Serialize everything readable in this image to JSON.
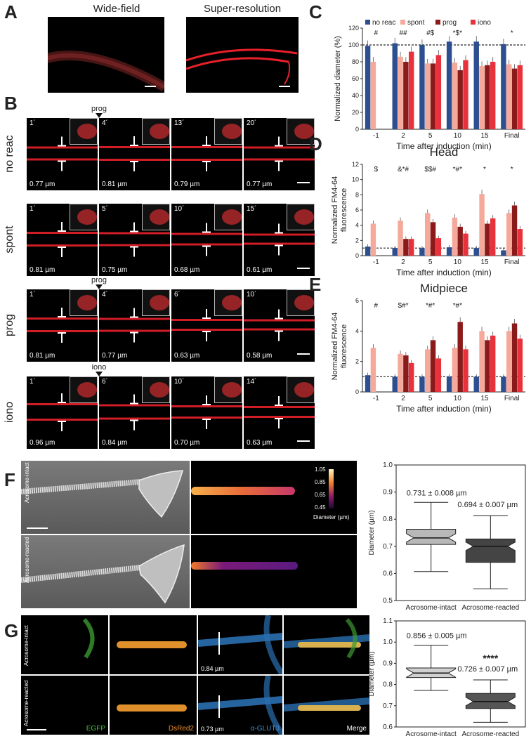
{
  "panels": {
    "A": {
      "letter": "A",
      "titles": [
        "Wide-field",
        "Super-resolution"
      ]
    },
    "B": {
      "letter": "B",
      "rows": [
        {
          "label": "no reac",
          "marker": "prog",
          "marker_col": 1,
          "frames": [
            {
              "time": "1´",
              "value": "0.77 µm"
            },
            {
              "time": "4´",
              "value": "0.81 µm"
            },
            {
              "time": "13´",
              "value": "0.79 µm"
            },
            {
              "time": "20´",
              "value": "0.77 µm"
            }
          ]
        },
        {
          "label": "spont",
          "marker": "",
          "marker_col": -1,
          "frames": [
            {
              "time": "1´",
              "value": "0.81 µm"
            },
            {
              "time": "5´",
              "value": "0.75 µm"
            },
            {
              "time": "10´",
              "value": "0.68 µm"
            },
            {
              "time": "15´",
              "value": "0.61 µm"
            }
          ]
        },
        {
          "label": "prog",
          "marker": "prog",
          "marker_col": 1,
          "frames": [
            {
              "time": "1´",
              "value": "0.81 µm"
            },
            {
              "time": "4´",
              "value": "0.77 µm"
            },
            {
              "time": "6´",
              "value": "0.63 µm"
            },
            {
              "time": "10´",
              "value": "0.58 µm"
            }
          ]
        },
        {
          "label": "iono",
          "marker": "iono",
          "marker_col": 1,
          "frames": [
            {
              "time": "1´",
              "value": "0.96 µm"
            },
            {
              "time": "6´",
              "value": "0.84 µm"
            },
            {
              "time": "10´",
              "value": "0.70 µm"
            },
            {
              "time": "14´",
              "value": "0.63 µm"
            }
          ]
        }
      ]
    },
    "C": {
      "letter": "C"
    },
    "D": {
      "letter": "D"
    },
    "E": {
      "letter": "E"
    },
    "F": {
      "letter": "F",
      "labels": [
        "Acrosome-intact",
        "Acrosome-reacted"
      ],
      "colorbar": {
        "ticks": [
          "1.05",
          "0.85",
          "0.65",
          "0.45"
        ],
        "title": "Diameter (µm)"
      }
    },
    "G": {
      "letter": "G",
      "labels": [
        "Acrosome-intact",
        "Acrosome-reacted"
      ],
      "channels": [
        "EGFP",
        "DsRed2",
        "α-GLUT3",
        "Merge"
      ],
      "values": [
        "0.84 µm",
        "0.73 µm"
      ]
    }
  },
  "chart_data": [
    {
      "id": "C",
      "type": "bar",
      "title": "",
      "xlabel": "Time after induction (min)",
      "ylabel": "Normalized diameter (%)",
      "categories": [
        "-1",
        "2",
        "5",
        "10",
        "15",
        "Final"
      ],
      "ylim": [
        0,
        120
      ],
      "yticks": [
        0,
        20,
        40,
        60,
        80,
        100,
        120
      ],
      "reference_line": 100,
      "legend": [
        "no reac",
        "spont",
        "prog",
        "iono"
      ],
      "colors": [
        "#2e4f8f",
        "#f4a99a",
        "#8b1a1a",
        "#e8313b"
      ],
      "series": [
        {
          "name": "no reac",
          "values": [
            99,
            102,
            100,
            104,
            104,
            101
          ]
        },
        {
          "name": "spont",
          "values": [
            80,
            86,
            78,
            79,
            75,
            77
          ]
        },
        {
          "name": "prog",
          "values": [
            null,
            80,
            78,
            70,
            76,
            72
          ]
        },
        {
          "name": "iono",
          "values": [
            null,
            92,
            88,
            82,
            80,
            76
          ]
        }
      ],
      "annotations": [
        "#",
        "##",
        "#$",
        "*$*",
        "",
        "*"
      ]
    },
    {
      "id": "D",
      "type": "bar",
      "title": "Head",
      "xlabel": "Time after induction (min)",
      "ylabel": "Normalized FM4-64\nfluorescence",
      "categories": [
        "-1",
        "2",
        "5",
        "10",
        "15",
        "Final"
      ],
      "ylim": [
        0,
        12
      ],
      "yticks": [
        0,
        2,
        4,
        6,
        8,
        10,
        12
      ],
      "reference_line": 1,
      "series": [
        {
          "name": "no reac",
          "values": [
            1.2,
            1.0,
            1.0,
            1.1,
            1.0,
            0.7
          ]
        },
        {
          "name": "spont",
          "values": [
            4.2,
            4.6,
            5.6,
            5.0,
            8.1,
            5.6
          ]
        },
        {
          "name": "prog",
          "values": [
            null,
            2.2,
            4.4,
            3.8,
            4.2,
            6.6
          ]
        },
        {
          "name": "iono",
          "values": [
            null,
            2.2,
            2.3,
            2.9,
            4.9,
            3.5
          ]
        }
      ],
      "annotations": [
        "$",
        "&*#",
        "$$#",
        "*#*",
        "*",
        "*"
      ]
    },
    {
      "id": "E",
      "type": "bar",
      "title": "Midpiece",
      "xlabel": "Time after induction (min)",
      "ylabel": "Normalized FM4-64\nfluorescence",
      "categories": [
        "-1",
        "2",
        "5",
        "10",
        "15",
        "Final"
      ],
      "ylim": [
        0,
        6
      ],
      "yticks": [
        0,
        2,
        4,
        6
      ],
      "reference_line": 1,
      "series": [
        {
          "name": "no reac",
          "values": [
            1.1,
            1.0,
            1.0,
            1.0,
            1.0,
            1.0
          ]
        },
        {
          "name": "spont",
          "values": [
            2.9,
            2.5,
            2.8,
            2.9,
            4.0,
            4.0
          ]
        },
        {
          "name": "prog",
          "values": [
            null,
            2.4,
            3.4,
            4.6,
            3.4,
            4.5
          ]
        },
        {
          "name": "iono",
          "values": [
            null,
            1.9,
            2.2,
            2.8,
            3.7,
            3.5
          ]
        }
      ],
      "annotations": [
        "#",
        "$#*",
        "*#*",
        "*#*",
        "",
        ""
      ]
    },
    {
      "id": "F",
      "type": "box",
      "title": "",
      "ylabel": "Diameter (µm)",
      "ylim": [
        0.5,
        1.0
      ],
      "yticks": [
        "0.5",
        "0.6",
        "0.7",
        "0.8",
        "0.9",
        "1.0"
      ],
      "categories": [
        "Acrosome-intact",
        "Acrosome-reacted"
      ],
      "boxes": [
        {
          "min": 0.607,
          "q1": 0.707,
          "median": 0.731,
          "q3": 0.763,
          "max": 0.862,
          "label": "0.731 ± 0.008 µm"
        },
        {
          "min": 0.543,
          "q1": 0.641,
          "median": 0.7,
          "q3": 0.727,
          "max": 0.813,
          "label": "0.694 ± 0.007 µm"
        }
      ],
      "colors": [
        "#b8b8b8",
        "#444444"
      ]
    },
    {
      "id": "G",
      "type": "box",
      "title": "",
      "ylabel": "Diameter (µm)",
      "ylim": [
        0.6,
        1.1
      ],
      "yticks": [
        "0.6",
        "0.7",
        "0.8",
        "0.9",
        "1.0",
        "1.1"
      ],
      "categories": [
        "Acrosome-intact",
        "Acrosome-reacted"
      ],
      "boxes": [
        {
          "min": 0.772,
          "q1": 0.833,
          "median": 0.854,
          "q3": 0.878,
          "max": 0.985,
          "label": "0.856 ± 0.005 µm"
        },
        {
          "min": 0.622,
          "q1": 0.687,
          "median": 0.72,
          "q3": 0.758,
          "max": 0.822,
          "label": "0.726 ± 0.007 µm",
          "sig": "****"
        }
      ],
      "colors": [
        "#d0d0d0",
        "#555555"
      ]
    }
  ]
}
